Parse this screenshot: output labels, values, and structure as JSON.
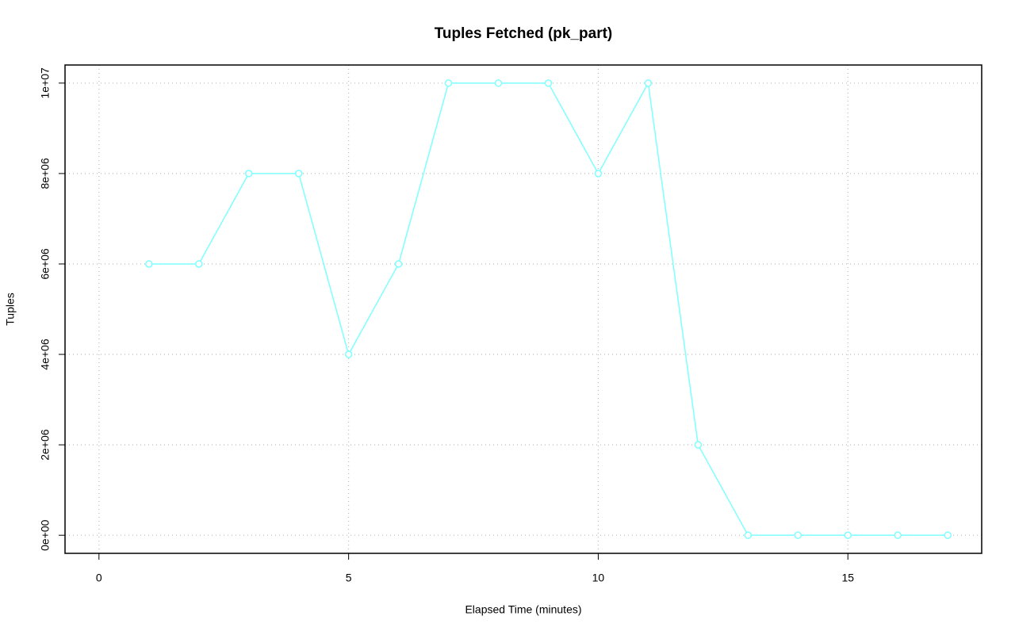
{
  "chart_data": {
    "type": "line",
    "title": "Tuples Fetched (pk_part)",
    "x_label": "Elapsed Time (minutes)",
    "y_label": "Tuples",
    "x": [
      1,
      2,
      3,
      4,
      5,
      6,
      7,
      8,
      9,
      10,
      11,
      12,
      13,
      14,
      15,
      16,
      17
    ],
    "series": [
      {
        "color": "#7fffff",
        "values": [
          6000000,
          6000000,
          8000000,
          8000000,
          4000000,
          6000000,
          10000000,
          10000000,
          10000000,
          8000000,
          10000000,
          2000000,
          0,
          0,
          0,
          0,
          0
        ]
      }
    ],
    "xlim": [
      -0.68,
      17.68
    ],
    "xticks": [
      0,
      5,
      10,
      15
    ],
    "ylim": [
      -400000,
      10400000
    ],
    "yticks": [
      {
        "value": 0,
        "label": "0e+00"
      },
      {
        "value": 2000000,
        "label": "2e+06"
      },
      {
        "value": 4000000,
        "label": "4e+06"
      },
      {
        "value": 6000000,
        "label": "6e+06"
      },
      {
        "value": 8000000,
        "label": "8e+06"
      },
      {
        "value": 10000000,
        "label": "1e+07"
      }
    ],
    "grid": true,
    "markers": true
  }
}
